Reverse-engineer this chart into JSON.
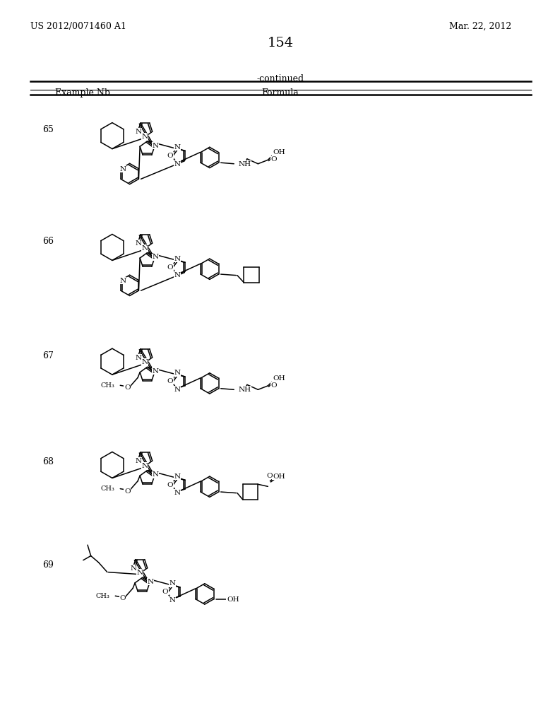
{
  "page_number": "154",
  "patent_number": "US 2012/0071460 A1",
  "patent_date": "Mar. 22, 2012",
  "continued_text": "-continued",
  "col1_header": "Example Nb",
  "col2_header": "Formula",
  "background_color": "#ffffff",
  "row_y_centers": [
    265,
    470,
    680,
    870,
    1060
  ],
  "example_labels": [
    "65",
    "66",
    "67",
    "68",
    "69"
  ]
}
